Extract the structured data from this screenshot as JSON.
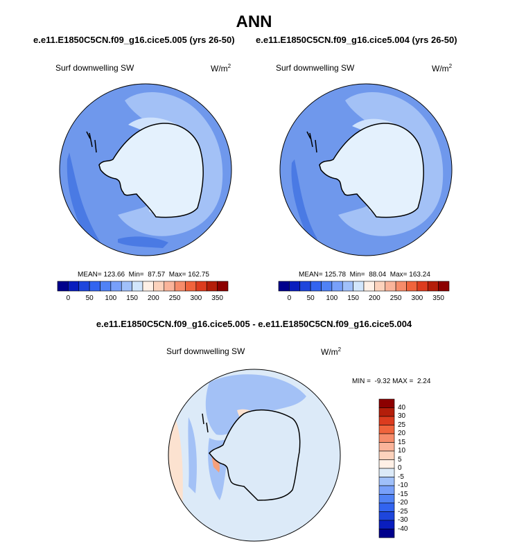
{
  "title": "ANN",
  "panels": [
    {
      "case_title": "e.e11.E1850C5CN.f09_g16.cice5.005 (yrs 26-50)",
      "variable": "Surf downwelling SW",
      "units_base": "W/m",
      "units_exp": "2",
      "mean_label": "MEAN=",
      "mean": "123.66",
      "min_label": "Min=",
      "min": "87.57",
      "max_label": "Max=",
      "max": "162.75"
    },
    {
      "case_title": "e.e11.E1850C5CN.f09_g16.cice5.004 (yrs 26-50)",
      "variable": "Surf downwelling SW",
      "units_base": "W/m",
      "units_exp": "2",
      "mean_label": "MEAN=",
      "mean": "125.78",
      "min_label": "Min=",
      "min": "88.04",
      "max_label": "Max=",
      "max": "163.24"
    }
  ],
  "horizontal_colorbar": {
    "colors": [
      "#00008c",
      "#0a1ebe",
      "#1e46dc",
      "#3264f0",
      "#5082f5",
      "#78a0fa",
      "#a0c0fa",
      "#d2e6fc",
      "#fff0e6",
      "#fcd2bc",
      "#fab49a",
      "#f68c6a",
      "#f0643c",
      "#dc3c1e",
      "#b41e0a",
      "#8c0000"
    ],
    "ticks": [
      "0",
      "50",
      "100",
      "150",
      "200",
      "250",
      "300",
      "350"
    ]
  },
  "difference": {
    "title": "e.e11.E1850C5CN.f09_g16.cice5.005 - e.e11.E1850C5CN.f09_g16.cice5.004",
    "variable": "Surf downwelling SW",
    "units_base": "W/m",
    "units_exp": "2",
    "min_label": "MIN =",
    "min": "-9.32",
    "max_label": "MAX =",
    "max": "2.24",
    "colorbar_colors": [
      "#8c0000",
      "#b41e0a",
      "#dc3c1e",
      "#f0643c",
      "#f68c6a",
      "#fab49a",
      "#fcd2bc",
      "#fff0e6",
      "#dceaf8",
      "#a0c0fa",
      "#78a0fa",
      "#5082f5",
      "#3264f0",
      "#1e46dc",
      "#0a1ebe",
      "#00008c"
    ],
    "colorbar_ticks": [
      "40",
      "30",
      "25",
      "20",
      "15",
      "10",
      "5",
      "0",
      "-5",
      "-10",
      "-15",
      "-20",
      "-25",
      "-30",
      "-40"
    ]
  }
}
